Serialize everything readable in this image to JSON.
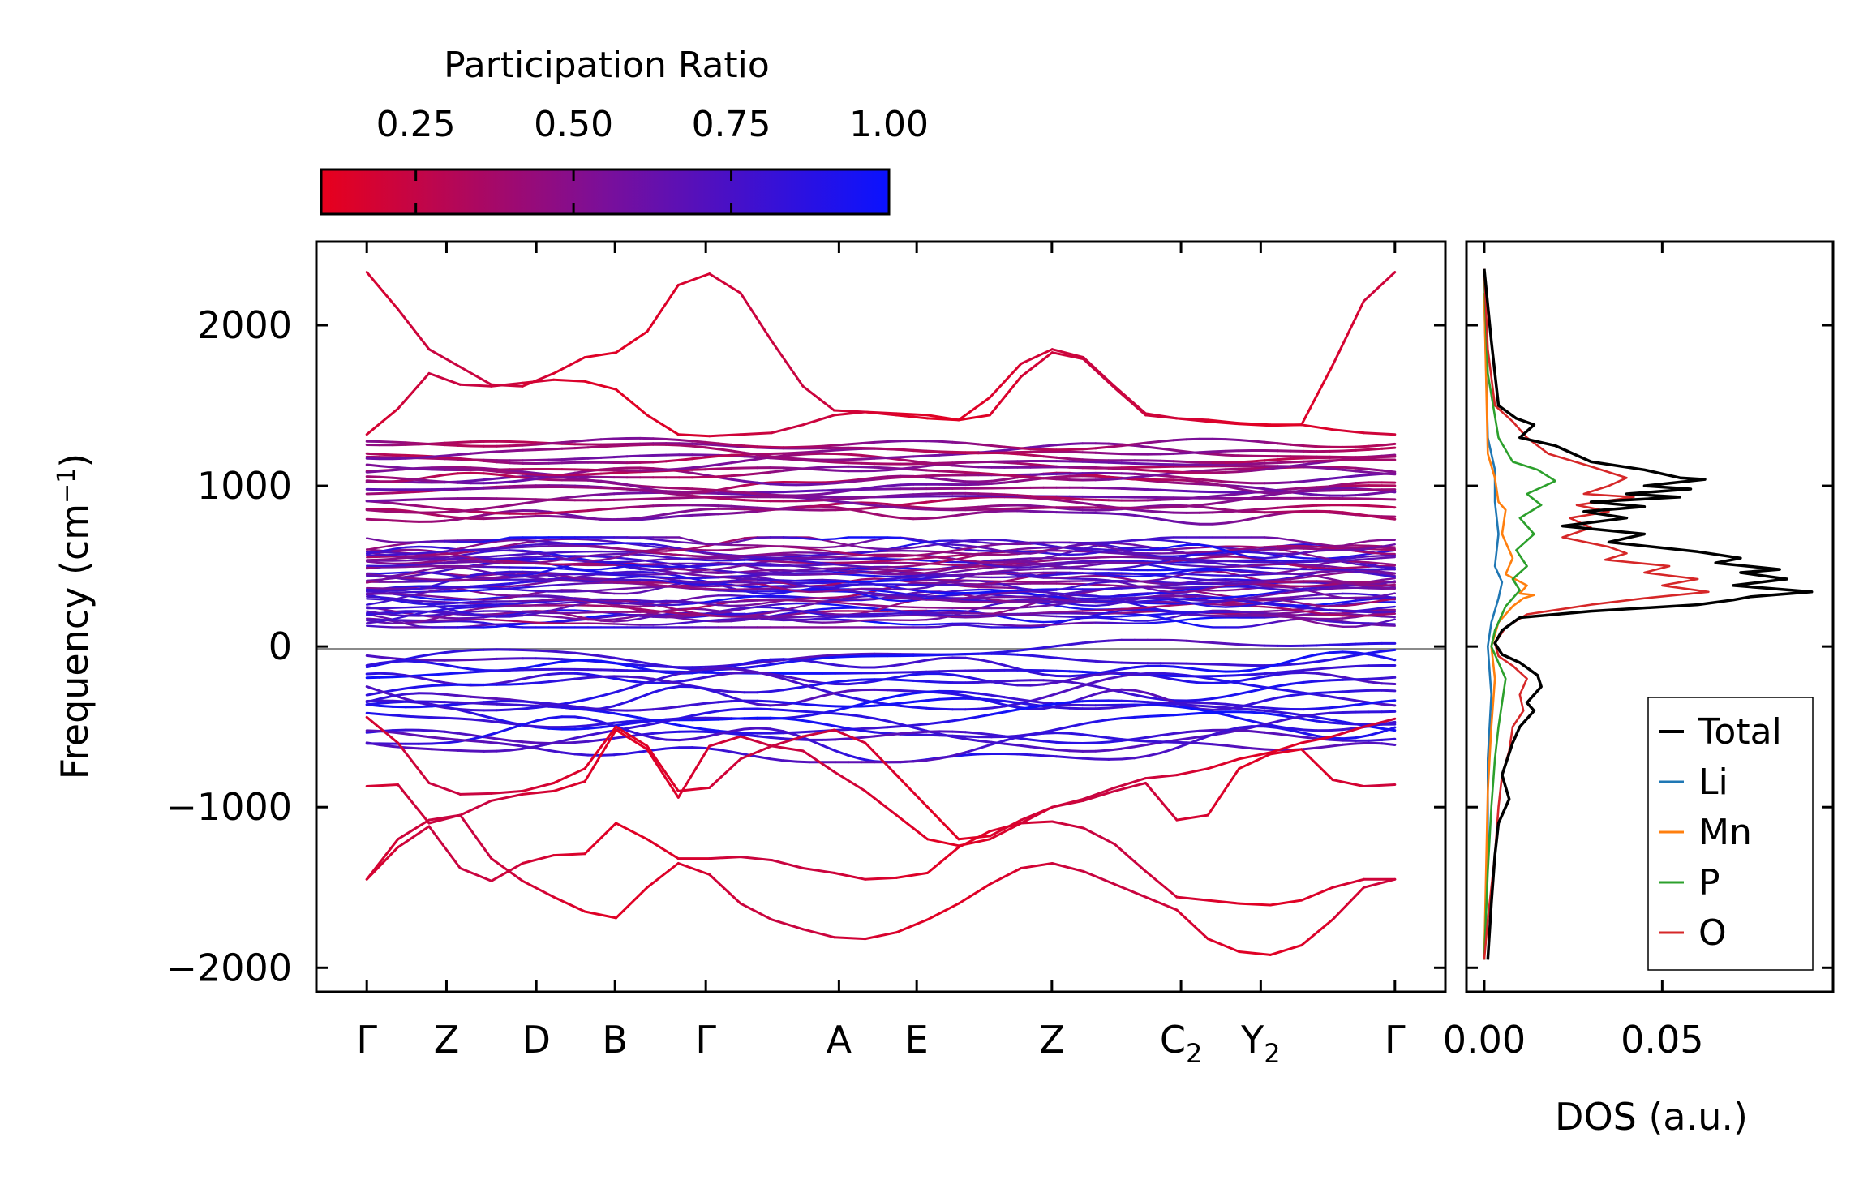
{
  "colors": {
    "cmap_low": "#e8001c",
    "cmap_mid": "#7a0f9a",
    "cmap_high": "#0a12ff",
    "total": "#000000",
    "li": "#1f77b4",
    "mn": "#ff7f0e",
    "p": "#2ca02c",
    "o": "#d62728",
    "zero_line": "#8a8a8a"
  },
  "chart_data": [
    {
      "type": "line",
      "name": "phonon band structure",
      "ylabel": "Frequency (cm",
      "ylabel_sup": "−1",
      "ylabel_close": ")",
      "ylim": [
        -2150,
        2520
      ],
      "yticks": [
        2000,
        1000,
        0,
        -1000,
        -2000
      ],
      "ytick_labels": [
        "2000",
        "1000",
        "0",
        "−1000",
        "−2000"
      ],
      "path_points": [
        {
          "label": "Γ",
          "sub": "",
          "q": 0.0
        },
        {
          "label": "Z",
          "sub": "",
          "q": 0.79
        },
        {
          "label": "D",
          "sub": "",
          "q": 1.68
        },
        {
          "label": "B",
          "sub": "",
          "q": 2.46
        },
        {
          "label": "Γ",
          "sub": "",
          "q": 3.36
        },
        {
          "label": "A",
          "sub": "",
          "q": 4.68
        },
        {
          "label": "E",
          "sub": "",
          "q": 5.45
        },
        {
          "label": "Z",
          "sub": "",
          "q": 6.79
        },
        {
          "label": "C",
          "sub": "2",
          "q": 8.07
        },
        {
          "label": "Y",
          "sub": "2",
          "q": 8.86
        },
        {
          "label": "Γ",
          "sub": "",
          "q": 10.19
        }
      ],
      "xlim": [
        -0.5,
        10.69
      ],
      "highlighted_bands": [
        [
          2330,
          2100,
          1850,
          1740,
          1630,
          1620,
          1700,
          1800,
          1830,
          1960,
          2250,
          2320,
          2200,
          1900,
          1620,
          1470,
          1460,
          1440,
          1420,
          1410,
          1550,
          1760,
          1850,
          1800,
          1620,
          1450,
          1420,
          1410,
          1390,
          1380,
          1380,
          1750,
          2150,
          2330
        ],
        [
          1320,
          1480,
          1700,
          1630,
          1620,
          1640,
          1660,
          1650,
          1600,
          1440,
          1320,
          1310,
          1320,
          1330,
          1380,
          1440,
          1460,
          1450,
          1440,
          1410,
          1440,
          1680,
          1830,
          1790,
          1610,
          1440,
          1420,
          1400,
          1385,
          1375,
          1380,
          1350,
          1330,
          1320
        ],
        [
          -440,
          -600,
          -850,
          -920,
          -915,
          -900,
          -850,
          -760,
          -500,
          -620,
          -900,
          -880,
          -700,
          -620,
          -560,
          -520,
          -600,
          -800,
          -1000,
          -1200,
          -1180,
          -1080,
          -1000,
          -950,
          -880,
          -820,
          -800,
          -760,
          -700,
          -660,
          -600,
          -560,
          -500,
          -450
        ],
        [
          -870,
          -860,
          -1100,
          -1050,
          -960,
          -920,
          -900,
          -840,
          -520,
          -640,
          -940,
          -620,
          -560,
          -620,
          -650,
          -780,
          -900,
          -1050,
          -1200,
          -1240,
          -1200,
          -1100,
          -1000,
          -960,
          -900,
          -850,
          -1080,
          -1050,
          -760,
          -670,
          -640,
          -830,
          -870,
          -860
        ],
        [
          -1450,
          -1250,
          -1120,
          -1380,
          -1460,
          -1350,
          -1300,
          -1290,
          -1100,
          -1200,
          -1320,
          -1320,
          -1310,
          -1330,
          -1380,
          -1410,
          -1450,
          -1440,
          -1410,
          -1250,
          -1150,
          -1100,
          -1090,
          -1130,
          -1230,
          -1400,
          -1560,
          -1580,
          -1600,
          -1610,
          -1580,
          -1500,
          -1450,
          -1450
        ],
        [
          -1450,
          -1200,
          -1080,
          -1050,
          -1320,
          -1460,
          -1560,
          -1650,
          -1690,
          -1500,
          -1350,
          -1420,
          -1600,
          -1700,
          -1760,
          -1810,
          -1820,
          -1780,
          -1700,
          -1600,
          -1480,
          -1380,
          -1350,
          -1400,
          -1480,
          -1560,
          -1640,
          -1820,
          -1900,
          -1920,
          -1860,
          -1700,
          -1500,
          -1450
        ]
      ]
    },
    {
      "type": "line",
      "name": "density of states",
      "xlabel": "DOS (a.u.)",
      "xlim": [
        -0.005,
        0.098
      ],
      "xticks": [
        0.0,
        0.05
      ],
      "xtick_labels": [
        "0.00",
        "0.05"
      ],
      "series": [
        {
          "name": "Total",
          "color_key": "total",
          "values": [
            [
              0.0,
              2350
            ],
            [
              0.002,
              1900
            ],
            [
              0.004,
              1500
            ],
            [
              0.009,
              1420
            ],
            [
              0.014,
              1380
            ],
            [
              0.01,
              1300
            ],
            [
              0.02,
              1250
            ],
            [
              0.03,
              1150
            ],
            [
              0.045,
              1100
            ],
            [
              0.055,
              1050
            ],
            [
              0.062,
              1040
            ],
            [
              0.045,
              1000
            ],
            [
              0.058,
              980
            ],
            [
              0.04,
              950
            ],
            [
              0.055,
              930
            ],
            [
              0.03,
              900
            ],
            [
              0.045,
              870
            ],
            [
              0.028,
              840
            ],
            [
              0.04,
              800
            ],
            [
              0.022,
              750
            ],
            [
              0.045,
              700
            ],
            [
              0.035,
              650
            ],
            [
              0.06,
              590
            ],
            [
              0.072,
              550
            ],
            [
              0.065,
              520
            ],
            [
              0.083,
              480
            ],
            [
              0.072,
              460
            ],
            [
              0.085,
              420
            ],
            [
              0.07,
              380
            ],
            [
              0.092,
              340
            ],
            [
              0.075,
              310
            ],
            [
              0.07,
              290
            ],
            [
              0.06,
              260
            ],
            [
              0.03,
              220
            ],
            [
              0.01,
              180
            ],
            [
              0.005,
              100
            ],
            [
              0.003,
              20
            ],
            [
              0.005,
              -50
            ],
            [
              0.01,
              -100
            ],
            [
              0.015,
              -180
            ],
            [
              0.016,
              -250
            ],
            [
              0.012,
              -350
            ],
            [
              0.014,
              -400
            ],
            [
              0.01,
              -500
            ],
            [
              0.008,
              -600
            ],
            [
              0.005,
              -800
            ],
            [
              0.007,
              -950
            ],
            [
              0.004,
              -1100
            ],
            [
              0.003,
              -1300
            ],
            [
              0.002,
              -1600
            ],
            [
              0.001,
              -1950
            ]
          ]
        },
        {
          "name": "Li",
          "color_key": "li",
          "values": [
            [
              0.0,
              2200
            ],
            [
              0.001,
              1300
            ],
            [
              0.003,
              1100
            ],
            [
              0.003,
              900
            ],
            [
              0.004,
              700
            ],
            [
              0.003,
              500
            ],
            [
              0.005,
              400
            ],
            [
              0.004,
              300
            ],
            [
              0.002,
              150
            ],
            [
              0.001,
              0
            ],
            [
              0.002,
              -300
            ],
            [
              0.001,
              -700
            ],
            [
              0.001,
              -1200
            ],
            [
              0.0,
              -1950
            ]
          ]
        },
        {
          "name": "Mn",
          "color_key": "mn",
          "values": [
            [
              0.0,
              2200
            ],
            [
              0.001,
              1200
            ],
            [
              0.003,
              1050
            ],
            [
              0.004,
              900
            ],
            [
              0.006,
              850
            ],
            [
              0.005,
              700
            ],
            [
              0.008,
              550
            ],
            [
              0.006,
              450
            ],
            [
              0.012,
              380
            ],
            [
              0.01,
              330
            ],
            [
              0.014,
              320
            ],
            [
              0.011,
              300
            ],
            [
              0.008,
              250
            ],
            [
              0.004,
              150
            ],
            [
              0.002,
              0
            ],
            [
              0.003,
              -200
            ],
            [
              0.002,
              -500
            ],
            [
              0.001,
              -900
            ],
            [
              0.0,
              -1950
            ]
          ]
        },
        {
          "name": "P",
          "color_key": "p",
          "values": [
            [
              0.0,
              2300
            ],
            [
              0.001,
              1700
            ],
            [
              0.004,
              1300
            ],
            [
              0.008,
              1150
            ],
            [
              0.015,
              1100
            ],
            [
              0.02,
              1030
            ],
            [
              0.012,
              950
            ],
            [
              0.016,
              880
            ],
            [
              0.01,
              800
            ],
            [
              0.014,
              700
            ],
            [
              0.009,
              600
            ],
            [
              0.012,
              500
            ],
            [
              0.008,
              420
            ],
            [
              0.01,
              350
            ],
            [
              0.006,
              250
            ],
            [
              0.003,
              100
            ],
            [
              0.002,
              0
            ],
            [
              0.004,
              -100
            ],
            [
              0.006,
              -200
            ],
            [
              0.005,
              -350
            ],
            [
              0.004,
              -500
            ],
            [
              0.003,
              -700
            ],
            [
              0.002,
              -1000
            ],
            [
              0.001,
              -1400
            ],
            [
              0.0,
              -1950
            ]
          ]
        },
        {
          "name": "O",
          "color_key": "o",
          "values": [
            [
              0.0,
              2350
            ],
            [
              0.001,
              1850
            ],
            [
              0.003,
              1500
            ],
            [
              0.008,
              1400
            ],
            [
              0.012,
              1300
            ],
            [
              0.018,
              1200
            ],
            [
              0.03,
              1120
            ],
            [
              0.04,
              1050
            ],
            [
              0.035,
              1000
            ],
            [
              0.028,
              950
            ],
            [
              0.042,
              930
            ],
            [
              0.026,
              880
            ],
            [
              0.035,
              840
            ],
            [
              0.024,
              800
            ],
            [
              0.03,
              740
            ],
            [
              0.022,
              680
            ],
            [
              0.035,
              620
            ],
            [
              0.04,
              580
            ],
            [
              0.034,
              540
            ],
            [
              0.052,
              500
            ],
            [
              0.045,
              460
            ],
            [
              0.06,
              420
            ],
            [
              0.05,
              380
            ],
            [
              0.063,
              340
            ],
            [
              0.045,
              300
            ],
            [
              0.03,
              260
            ],
            [
              0.012,
              200
            ],
            [
              0.006,
              120
            ],
            [
              0.003,
              20
            ],
            [
              0.004,
              -60
            ],
            [
              0.008,
              -120
            ],
            [
              0.012,
              -200
            ],
            [
              0.01,
              -300
            ],
            [
              0.011,
              -400
            ],
            [
              0.008,
              -500
            ],
            [
              0.007,
              -650
            ],
            [
              0.005,
              -800
            ],
            [
              0.004,
              -1000
            ],
            [
              0.003,
              -1300
            ],
            [
              0.001,
              -1700
            ],
            [
              0.0,
              -1950
            ]
          ]
        }
      ],
      "legend": [
        "Total",
        "Li",
        "Mn",
        "P",
        "O"
      ],
      "legend_loc": "lower-right"
    }
  ],
  "colorbar": {
    "title": "Participation Ratio",
    "range": [
      0.1,
      1.0
    ],
    "ticks": [
      0.25,
      0.5,
      0.75,
      1.0
    ],
    "tick_labels": [
      "0.25",
      "0.50",
      "0.75",
      "1.00"
    ]
  }
}
